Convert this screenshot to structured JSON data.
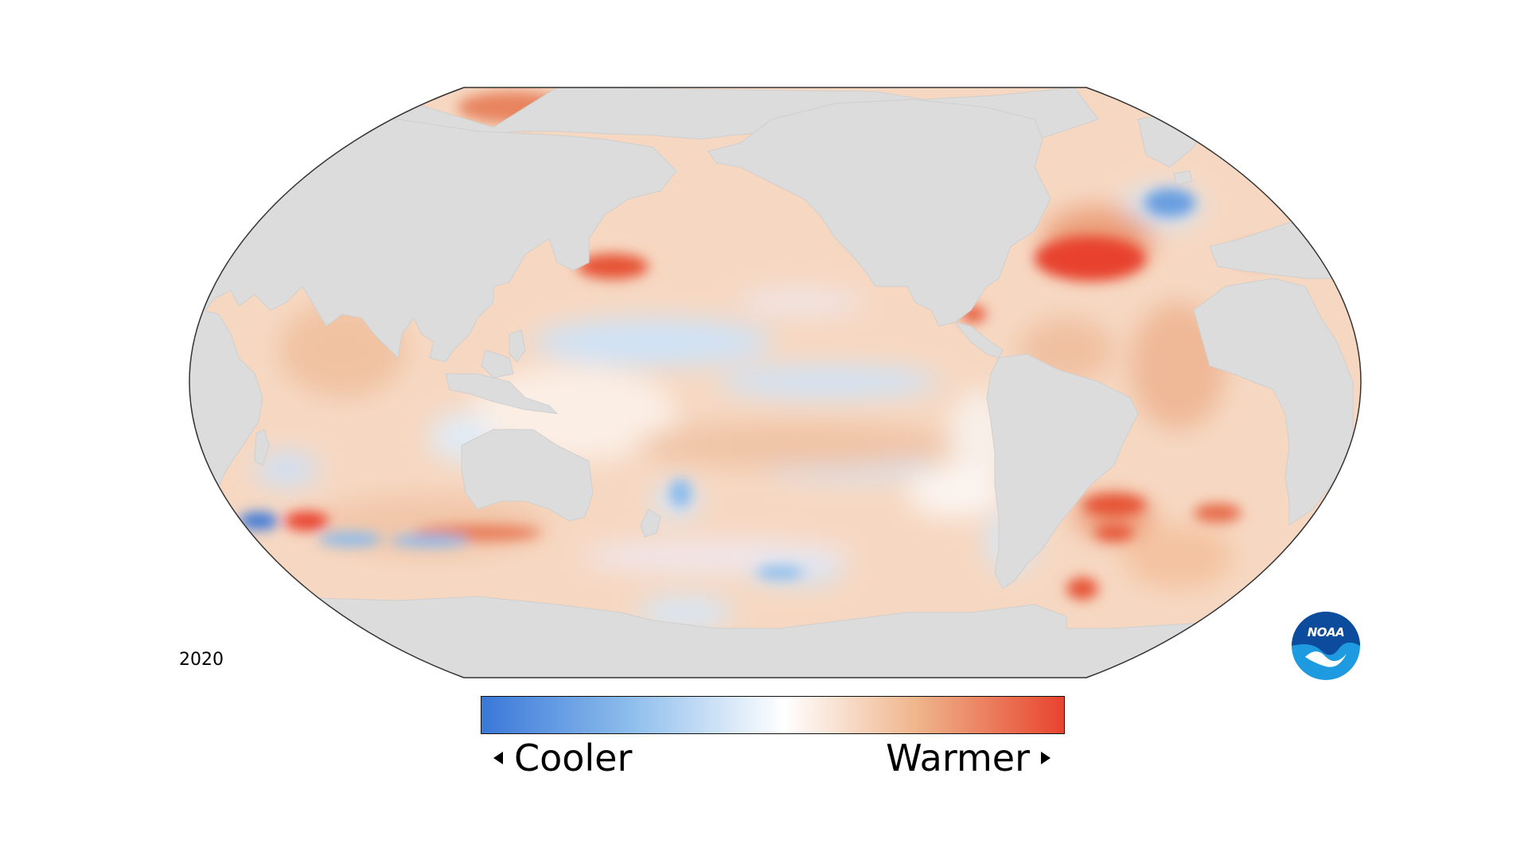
{
  "year": "2020",
  "legend": {
    "cooler_label": "Cooler",
    "warmer_label": "Warmer",
    "gradient": [
      "#3a78d8",
      "#8cbcec",
      "#ffffff",
      "#efb48a",
      "#e8432e"
    ]
  },
  "logo": {
    "text": "NOAA",
    "primary_color": "#0d4c9c",
    "secondary_color": "#1e9be0"
  },
  "map": {
    "projection": "Robinson",
    "land_color": "#dcdcdc",
    "ocean_base_color": "#f6dcc8",
    "outline_color": "#333333"
  }
}
